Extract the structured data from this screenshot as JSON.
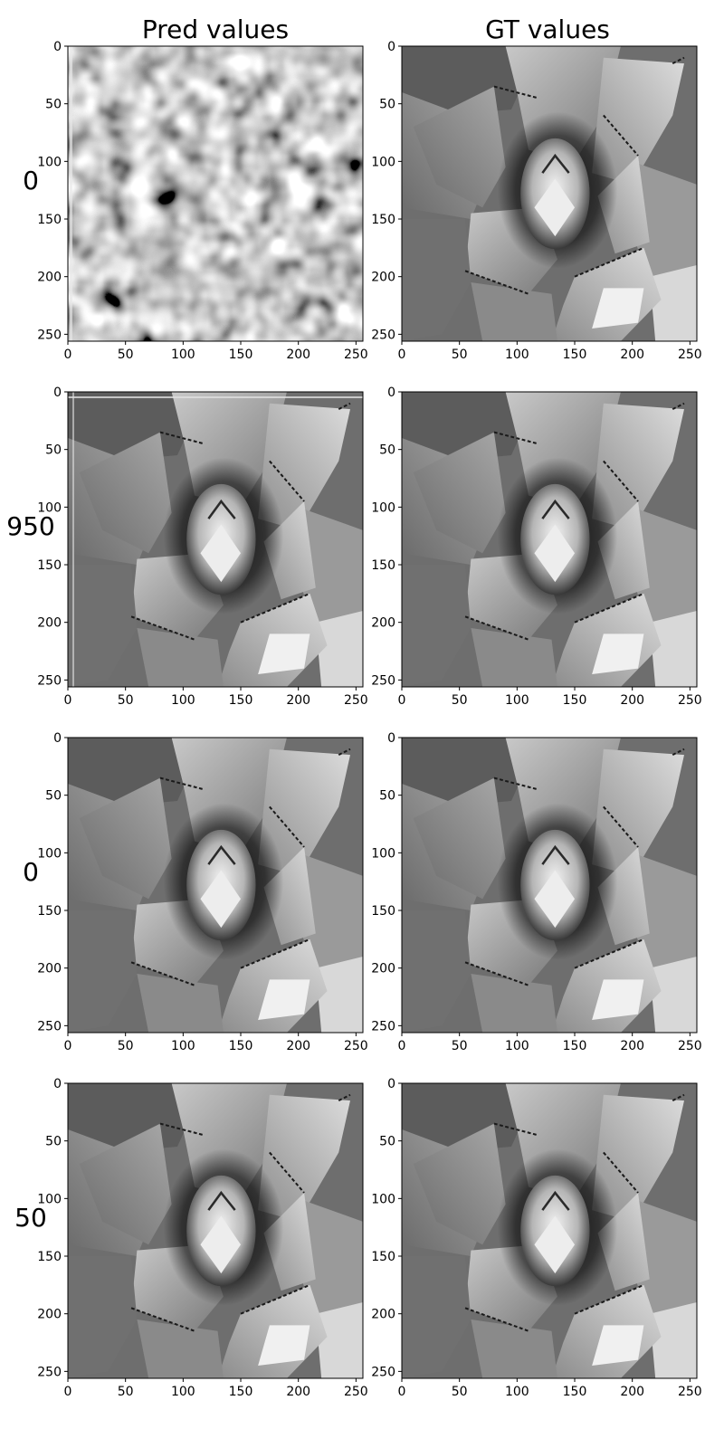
{
  "chart_data": {
    "type": "heatmap",
    "colormap": "gray",
    "column_titles": [
      "Pred values",
      "GT values"
    ],
    "row_labels": [
      "0",
      "950",
      "0",
      "50"
    ],
    "xlim": [
      0,
      256
    ],
    "ylim": [
      256,
      0
    ],
    "x_ticks": [
      0,
      50,
      100,
      150,
      200,
      250
    ],
    "y_ticks": [
      0,
      50,
      100,
      150,
      200,
      250
    ],
    "grid": false,
    "panels": [
      {
        "row": 0,
        "column": "Pred values",
        "content": "blurry noise-like grayscale texture"
      },
      {
        "row": 0,
        "column": "GT values",
        "content": "succulent plant grayscale photo"
      },
      {
        "row": 1,
        "column": "Pred values",
        "content": "succulent plant grayscale reconstruction with edge artifacts"
      },
      {
        "row": 1,
        "column": "GT values",
        "content": "succulent plant grayscale photo"
      },
      {
        "row": 2,
        "column": "Pred values",
        "content": "succulent plant grayscale reconstruction"
      },
      {
        "row": 2,
        "column": "GT values",
        "content": "succulent plant grayscale photo"
      },
      {
        "row": 3,
        "column": "Pred values",
        "content": "succulent plant grayscale reconstruction"
      },
      {
        "row": 3,
        "column": "GT values",
        "content": "succulent plant grayscale photo"
      }
    ]
  }
}
